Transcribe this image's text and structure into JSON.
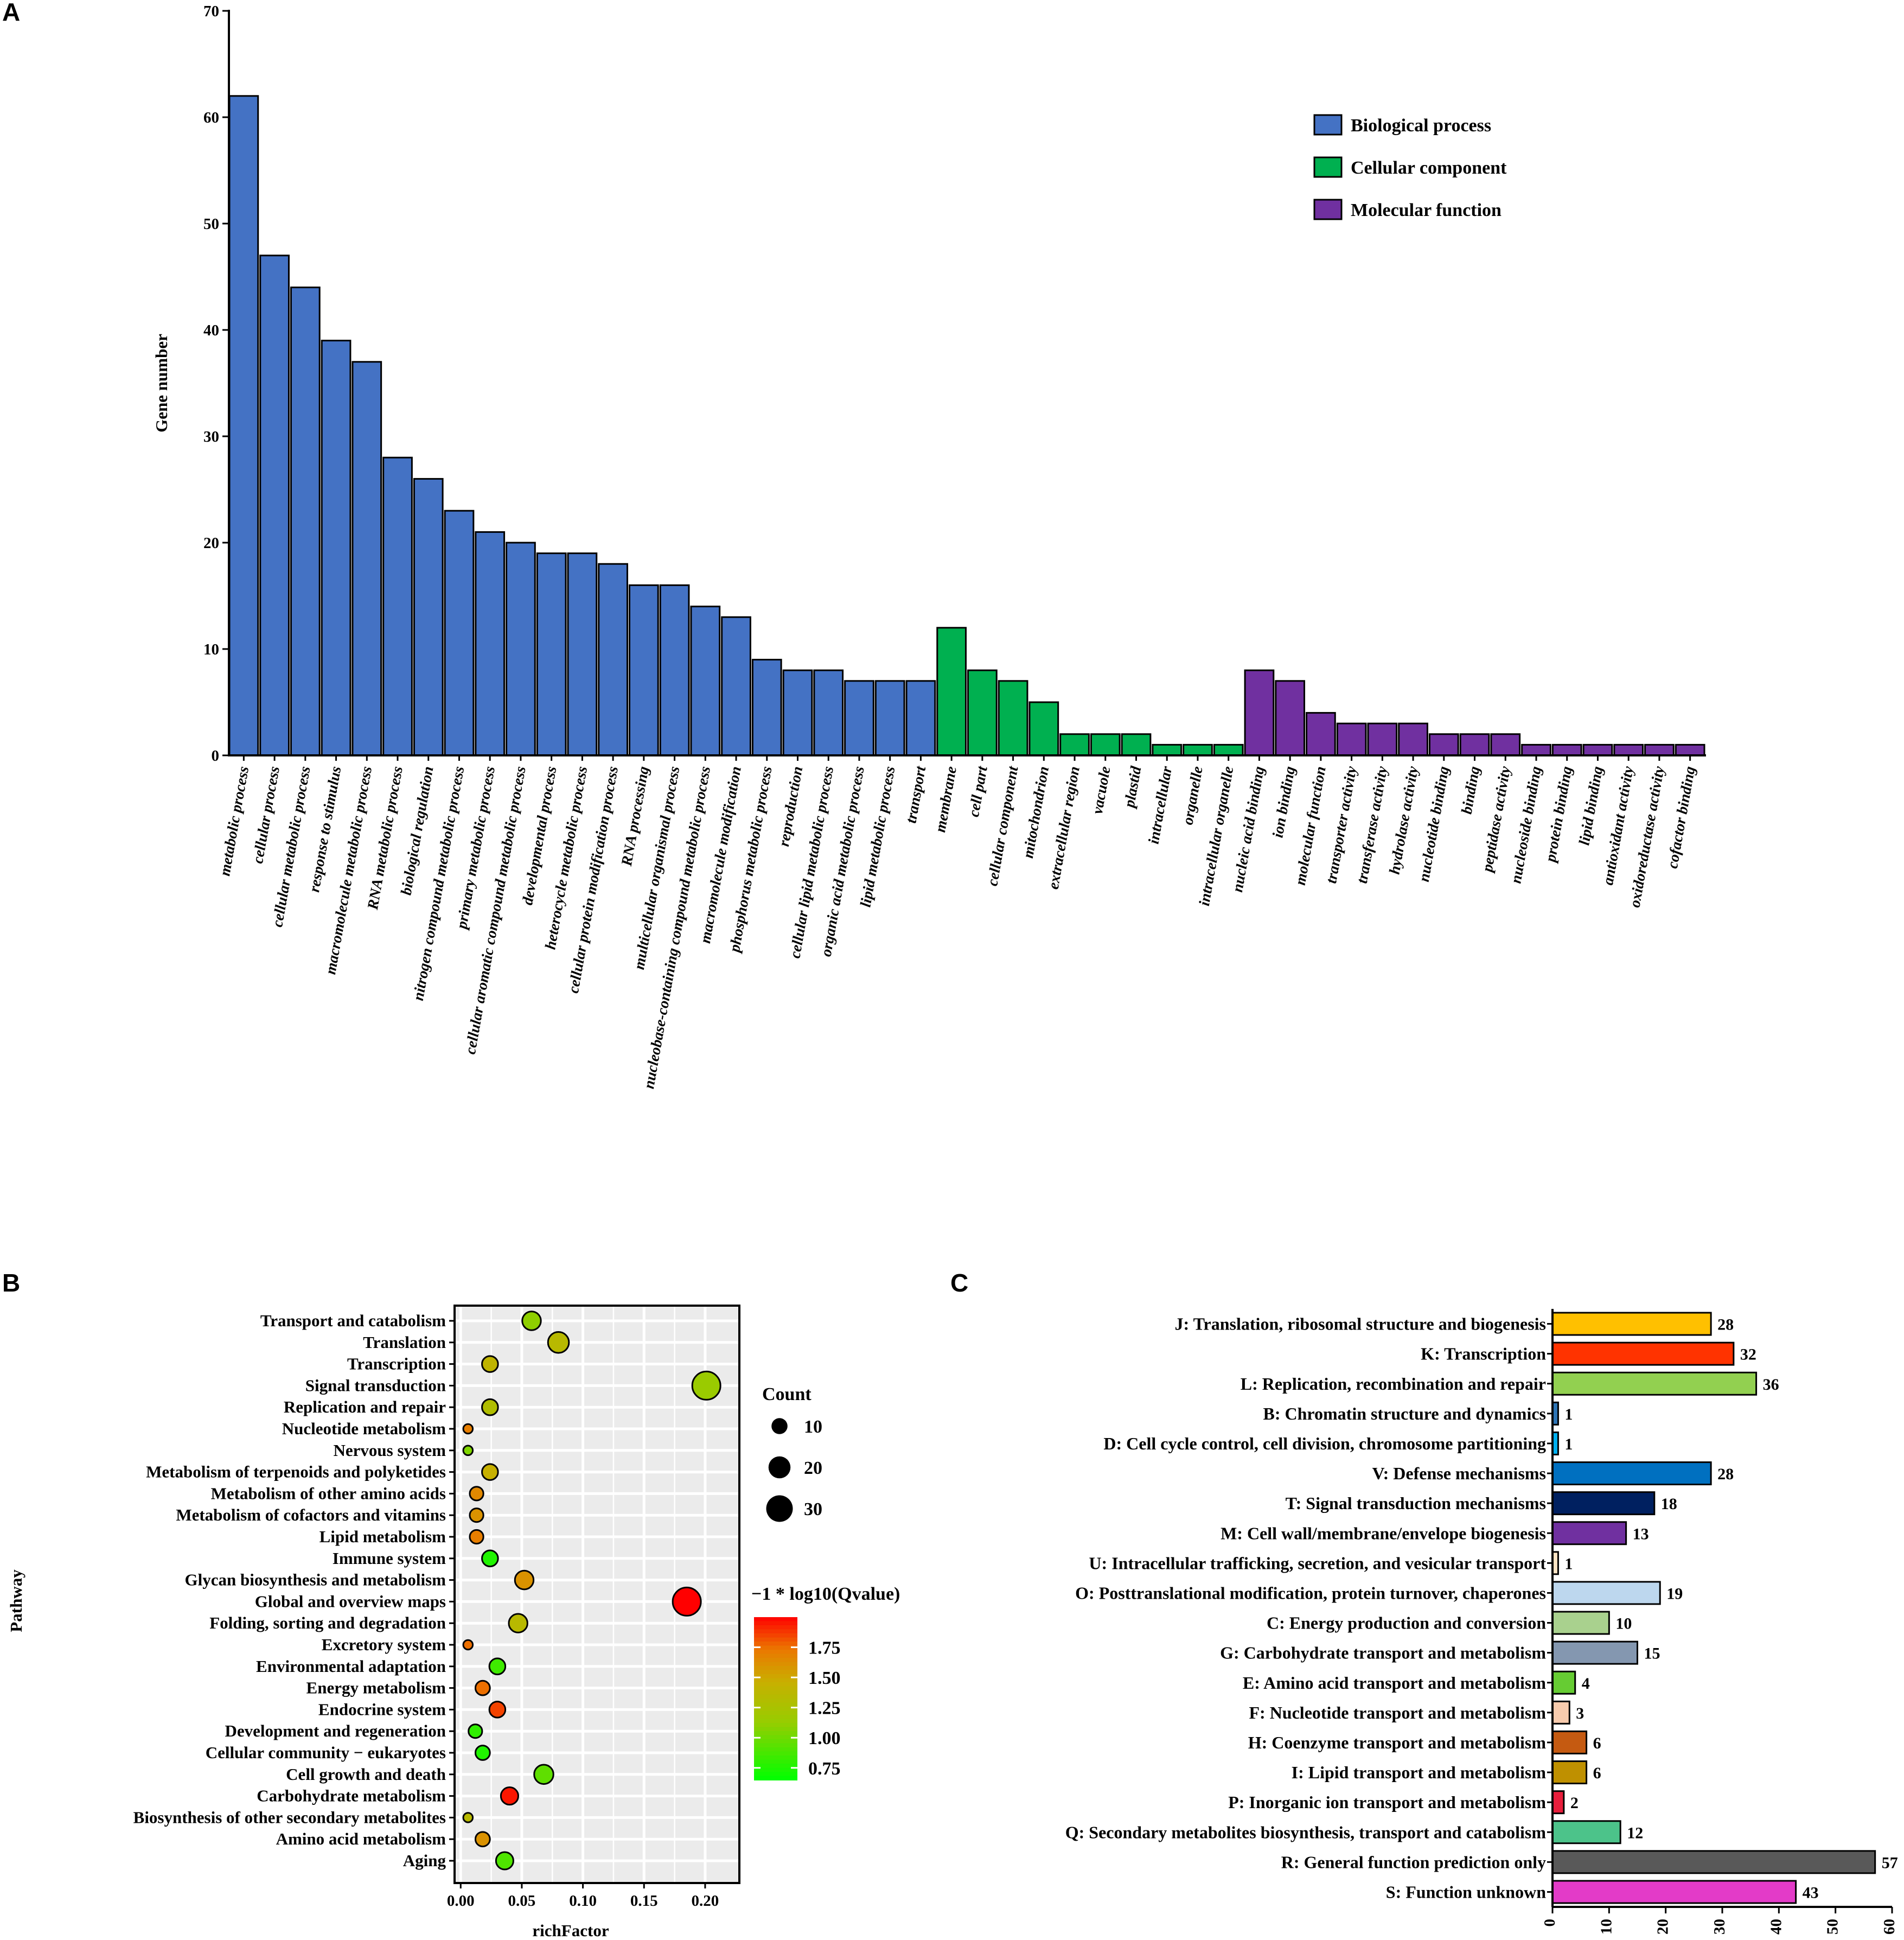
{
  "panels": {
    "a": "A",
    "b": "B",
    "c": "C"
  },
  "chart_data": [
    {
      "panel": "A",
      "type": "bar",
      "ylabel": "Gene number",
      "ylim": [
        0,
        70
      ],
      "yticks": [
        0,
        10,
        20,
        30,
        40,
        50,
        60,
        70
      ],
      "legend": [
        {
          "name": "Biological process",
          "color": "#4472C4"
        },
        {
          "name": "Cellular component",
          "color": "#00B050"
        },
        {
          "name": "Molecular function",
          "color": "#7030A0"
        }
      ],
      "series": [
        {
          "name": "Biological process",
          "color": "#4472C4",
          "categories": [
            "metabolic process",
            "cellular process",
            "cellular metabolic process",
            "response to stimulus",
            "macromolecule metabolic process",
            "RNA metabolic process",
            "biological regulation",
            "nitrogen compound metabolic process",
            "primary metabolic process",
            "cellular aromatic compound metabolic process",
            "developmental process",
            "heterocycle metabolic process",
            "cellular protein modification process",
            "RNA processing",
            "multicellular organismal process",
            "nucleobase-containing compound metabolic process",
            "macromolecule modification",
            "phosphorus metabolic process",
            "reproduction",
            "cellular lipid metabolic process",
            "organic acid metabolic process",
            "lipid metabolic process",
            "transport"
          ],
          "values": [
            62,
            47,
            44,
            39,
            37,
            28,
            26,
            23,
            21,
            20,
            19,
            19,
            18,
            16,
            16,
            14,
            13,
            9,
            8,
            8,
            7,
            7,
            7
          ]
        },
        {
          "name": "Cellular component",
          "color": "#00B050",
          "categories": [
            "membrane",
            "cell part",
            "cellular component",
            "mitochondrion",
            "extracellular region",
            "vacuole",
            "plastid",
            "intracellular",
            "organelle",
            "intracellular organelle"
          ],
          "values": [
            12,
            8,
            7,
            5,
            2,
            2,
            2,
            1,
            1,
            1
          ]
        },
        {
          "name": "Molecular function",
          "color": "#7030A0",
          "categories": [
            "nucleic acid binding",
            "ion binding",
            "molecular function",
            "transporter activity",
            "transferase activity",
            "hydrolase activity",
            "nucleotide binding",
            "binding",
            "peptidase activity",
            "nucleoside binding",
            "protein binding",
            "lipid binding",
            "antioxidant activity",
            "oxidoreductase activity",
            "cofactor binding"
          ],
          "values": [
            8,
            7,
            4,
            3,
            3,
            3,
            2,
            2,
            2,
            1,
            1,
            1,
            1,
            1,
            1
          ]
        }
      ]
    },
    {
      "panel": "B",
      "type": "scatter",
      "xlabel": "richFactor",
      "ylabel": "Pathway",
      "xlim": [
        -0.005,
        0.228
      ],
      "xticks": [
        "0.00",
        "0.05",
        "0.10",
        "0.15",
        "0.20"
      ],
      "size_legend": {
        "title": "Count",
        "values": [
          10,
          20,
          30
        ]
      },
      "color_legend": {
        "title": "−1 * log10(Qvalue)",
        "ticks": [
          "1.75",
          "1.50",
          "1.25",
          "1.00",
          "0.75"
        ],
        "range": [
          0.65,
          2.0
        ],
        "low_color": "#00FF00",
        "high_color": "#FF0000"
      },
      "points": [
        {
          "pathway": "Transport and catabolism",
          "richFactor": 0.058,
          "count": 14,
          "q": 1.1
        },
        {
          "pathway": "Translation",
          "richFactor": 0.08,
          "count": 18,
          "q": 1.35
        },
        {
          "pathway": "Transcription",
          "richFactor": 0.024,
          "count": 10,
          "q": 1.4
        },
        {
          "pathway": "Signal transduction",
          "richFactor": 0.201,
          "count": 34,
          "q": 1.15
        },
        {
          "pathway": "Replication and repair",
          "richFactor": 0.024,
          "count": 10,
          "q": 1.3
        },
        {
          "pathway": "Nucleotide metabolism",
          "richFactor": 0.006,
          "count": 3,
          "q": 1.7
        },
        {
          "pathway": "Nervous system",
          "richFactor": 0.006,
          "count": 3,
          "q": 1.05
        },
        {
          "pathway": "Metabolism of terpenoids and polyketides",
          "richFactor": 0.024,
          "count": 10,
          "q": 1.45
        },
        {
          "pathway": "Metabolism of other amino acids",
          "richFactor": 0.013,
          "count": 7,
          "q": 1.65
        },
        {
          "pathway": "Metabolism of cofactors and vitamins",
          "richFactor": 0.013,
          "count": 7,
          "q": 1.6
        },
        {
          "pathway": "Lipid metabolism",
          "richFactor": 0.013,
          "count": 7,
          "q": 1.7
        },
        {
          "pathway": "Immune system",
          "richFactor": 0.024,
          "count": 10,
          "q": 0.75
        },
        {
          "pathway": "Glycan biosynthesis and metabolism",
          "richFactor": 0.052,
          "count": 14,
          "q": 1.6
        },
        {
          "pathway": "Global and overview maps",
          "richFactor": 0.185,
          "count": 34,
          "q": 2.0
        },
        {
          "pathway": "Folding, sorting and degradation",
          "richFactor": 0.047,
          "count": 14,
          "q": 1.35
        },
        {
          "pathway": "Excretory system",
          "richFactor": 0.006,
          "count": 3,
          "q": 1.75
        },
        {
          "pathway": "Environmental adaptation",
          "richFactor": 0.03,
          "count": 10,
          "q": 0.85
        },
        {
          "pathway": "Energy metabolism",
          "richFactor": 0.018,
          "count": 8,
          "q": 1.75
        },
        {
          "pathway": "Endocrine system",
          "richFactor": 0.03,
          "count": 10,
          "q": 1.85
        },
        {
          "pathway": "Development and regeneration",
          "richFactor": 0.012,
          "count": 7,
          "q": 0.8
        },
        {
          "pathway": "Cellular community − eukaryotes",
          "richFactor": 0.018,
          "count": 8,
          "q": 0.75
        },
        {
          "pathway": "Cell growth and death",
          "richFactor": 0.068,
          "count": 15,
          "q": 0.95
        },
        {
          "pathway": "Carbohydrate metabolism",
          "richFactor": 0.04,
          "count": 12,
          "q": 1.95
        },
        {
          "pathway": "Biosynthesis of other secondary metabolites",
          "richFactor": 0.006,
          "count": 3,
          "q": 1.35
        },
        {
          "pathway": "Amino acid metabolism",
          "richFactor": 0.018,
          "count": 8,
          "q": 1.6
        },
        {
          "pathway": "Aging",
          "richFactor": 0.036,
          "count": 12,
          "q": 0.9
        }
      ]
    },
    {
      "panel": "C",
      "type": "bar",
      "orientation": "horizontal",
      "xlim": [
        0,
        60
      ],
      "xticks": [
        0,
        10,
        20,
        30,
        40,
        50,
        60
      ],
      "categories": [
        "J: Translation, ribosomal structure and biogenesis",
        "K: Transcription",
        "L: Replication, recombination and repair",
        "B: Chromatin structure and dynamics",
        "D: Cell cycle control, cell division, chromosome partitioning",
        "V: Defense mechanisms",
        "T: Signal transduction mechanisms",
        "M: Cell wall/membrane/envelope biogenesis",
        "U: Intracellular trafficking, secretion, and vesicular transport",
        "O: Posttranslational modification, protein turnover, chaperones",
        "C: Energy production and conversion",
        "G: Carbohydrate transport and metabolism",
        "E: Amino acid transport and metabolism",
        "F: Nucleotide transport and metabolism",
        "H: Coenzyme transport and metabolism",
        "I: Lipid transport and metabolism",
        "P: Inorganic ion transport and metabolism",
        "Q: Secondary metabolites biosynthesis, transport and catabolism",
        "R: General function prediction only",
        "S: Function unknown"
      ],
      "values": [
        28,
        32,
        36,
        1,
        1,
        28,
        18,
        13,
        1,
        19,
        10,
        15,
        4,
        3,
        6,
        6,
        2,
        12,
        57,
        43
      ],
      "colors": [
        "#FFC000",
        "#FF3300",
        "#92D050",
        "#2E75B6",
        "#00B0F0",
        "#0070C0",
        "#002060",
        "#7030A0",
        "#FFE4C4",
        "#BDD7EE",
        "#A9D18E",
        "#8497B0",
        "#66CC33",
        "#F8CBAD",
        "#C55A11",
        "#BF9000",
        "#E81E3C",
        "#4CC38A",
        "#595959",
        "#E33BC8"
      ]
    }
  ]
}
